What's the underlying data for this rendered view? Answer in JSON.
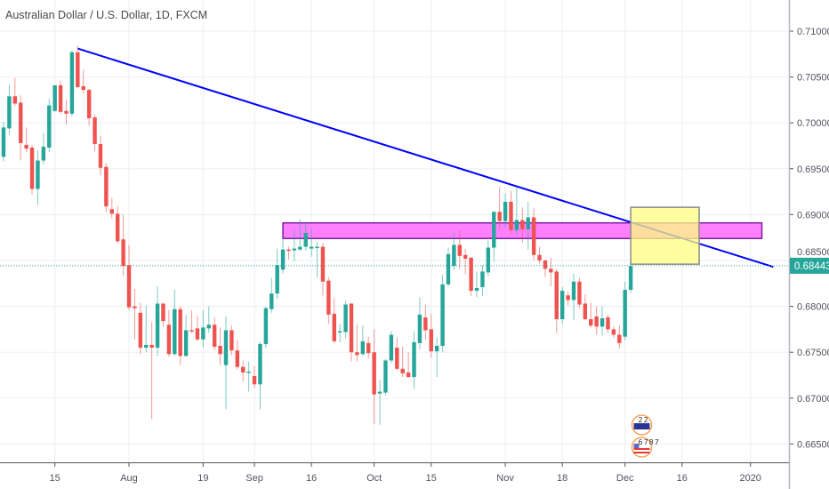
{
  "header": {
    "title": "Australian Dollar / U.S. Dollar, 1D, FXCM"
  },
  "colors": {
    "up": "#26a69a",
    "down": "#ef5350",
    "trendline": "#0000ff",
    "zone": "#ff80ff",
    "zone_border": "#7b1fa2",
    "box": "#ffff80",
    "box_border": "#8a8a8a",
    "grid": "#edf1f6",
    "last_price_bg": "#26a69a"
  },
  "chart_data": {
    "type": "candlestick",
    "title": "Australian Dollar / U.S. Dollar, 1D, FXCM",
    "ylim": [
      0.663,
      0.7135
    ],
    "y_ticks": [
      "0.71000",
      "0.70500",
      "0.70000",
      "0.69500",
      "0.69000",
      "0.68500",
      "0.68000",
      "0.67500",
      "0.67000",
      "0.66500"
    ],
    "y_tick_values": [
      0.71,
      0.705,
      0.7,
      0.695,
      0.69,
      0.685,
      0.68,
      0.675,
      0.67,
      0.665
    ],
    "x_ticks": [
      {
        "label": "15",
        "bar": 9
      },
      {
        "label": "Aug",
        "bar": 22
      },
      {
        "label": "19",
        "bar": 35
      },
      {
        "label": "Sep",
        "bar": 44
      },
      {
        "label": "16",
        "bar": 54
      },
      {
        "label": "Oct",
        "bar": 65
      },
      {
        "label": "15",
        "bar": 75
      },
      {
        "label": "Nov",
        "bar": 88
      },
      {
        "label": "18",
        "bar": 98
      },
      {
        "label": "Dec",
        "bar": 109
      },
      {
        "label": "16",
        "bar": 119
      },
      {
        "label": "2020",
        "bar": 131
      }
    ],
    "last_price": {
      "value": 0.68443,
      "label": "0.68443"
    },
    "ohlc": [
      [
        0.6963,
        0.7001,
        0.6958,
        0.6995
      ],
      [
        0.6994,
        0.7041,
        0.6987,
        0.7029
      ],
      [
        0.7029,
        0.7049,
        0.7018,
        0.7021
      ],
      [
        0.7022,
        0.703,
        0.6959,
        0.6978
      ],
      [
        0.6976,
        0.6995,
        0.6968,
        0.6972
      ],
      [
        0.6973,
        0.6976,
        0.6922,
        0.6928
      ],
      [
        0.6928,
        0.697,
        0.6911,
        0.6959
      ],
      [
        0.6959,
        0.6989,
        0.6955,
        0.6974
      ],
      [
        0.6973,
        0.7026,
        0.6968,
        0.7019
      ],
      [
        0.7013,
        0.7041,
        0.7012,
        0.7041
      ],
      [
        0.7041,
        0.7046,
        0.701,
        0.7012
      ],
      [
        0.7013,
        0.7025,
        0.6998,
        0.701
      ],
      [
        0.701,
        0.7079,
        0.7007,
        0.7077
      ],
      [
        0.7077,
        0.7084,
        0.7038,
        0.7039
      ],
      [
        0.704,
        0.7058,
        0.7032,
        0.7036
      ],
      [
        0.7036,
        0.7037,
        0.6997,
        0.7005
      ],
      [
        0.7006,
        0.7009,
        0.6969,
        0.6977
      ],
      [
        0.6977,
        0.6986,
        0.6943,
        0.6951
      ],
      [
        0.6952,
        0.6956,
        0.6903,
        0.6909
      ],
      [
        0.6906,
        0.6918,
        0.6896,
        0.6901
      ],
      [
        0.6901,
        0.6909,
        0.6869,
        0.6871
      ],
      [
        0.6873,
        0.69,
        0.6833,
        0.6844
      ],
      [
        0.6845,
        0.6867,
        0.6796,
        0.6799
      ],
      [
        0.68,
        0.6819,
        0.6764,
        0.6798
      ],
      [
        0.6793,
        0.6804,
        0.6748,
        0.6755
      ],
      [
        0.6755,
        0.6801,
        0.675,
        0.6758
      ],
      [
        0.6758,
        0.6783,
        0.6677,
        0.6755
      ],
      [
        0.6755,
        0.6822,
        0.6746,
        0.6803
      ],
      [
        0.6803,
        0.6804,
        0.6778,
        0.6784
      ],
      [
        0.678,
        0.6796,
        0.6745,
        0.6748
      ],
      [
        0.6748,
        0.6818,
        0.6746,
        0.6797
      ],
      [
        0.6797,
        0.68,
        0.6736,
        0.6746
      ],
      [
        0.6746,
        0.6791,
        0.6745,
        0.6774
      ],
      [
        0.6774,
        0.6796,
        0.6771,
        0.6773
      ],
      [
        0.6776,
        0.679,
        0.6762,
        0.6764
      ],
      [
        0.6764,
        0.6796,
        0.6755,
        0.6777
      ],
      [
        0.6776,
        0.68,
        0.6771,
        0.678
      ],
      [
        0.678,
        0.6788,
        0.6752,
        0.6756
      ],
      [
        0.6757,
        0.6777,
        0.6736,
        0.6748
      ],
      [
        0.6736,
        0.6789,
        0.6688,
        0.6774
      ],
      [
        0.6774,
        0.6779,
        0.6747,
        0.6752
      ],
      [
        0.6752,
        0.6763,
        0.6731,
        0.6734
      ],
      [
        0.6734,
        0.6741,
        0.6718,
        0.6728
      ],
      [
        0.6728,
        0.674,
        0.6707,
        0.6729
      ],
      [
        0.6724,
        0.6735,
        0.6711,
        0.6715
      ],
      [
        0.6715,
        0.6761,
        0.6688,
        0.6759
      ],
      [
        0.6759,
        0.68,
        0.6755,
        0.6798
      ],
      [
        0.6797,
        0.6831,
        0.6793,
        0.6814
      ],
      [
        0.6814,
        0.6863,
        0.6808,
        0.6845
      ],
      [
        0.684,
        0.6874,
        0.6836,
        0.6862
      ],
      [
        0.6862,
        0.6865,
        0.6851,
        0.6861
      ],
      [
        0.6861,
        0.6885,
        0.6849,
        0.6863
      ],
      [
        0.6862,
        0.6895,
        0.686,
        0.6865
      ],
      [
        0.6865,
        0.6891,
        0.6861,
        0.688
      ],
      [
        0.6863,
        0.6885,
        0.6854,
        0.6865
      ],
      [
        0.6864,
        0.687,
        0.6832,
        0.6865
      ],
      [
        0.6865,
        0.6869,
        0.6812,
        0.6827
      ],
      [
        0.6828,
        0.6832,
        0.6781,
        0.6791
      ],
      [
        0.6792,
        0.6809,
        0.676,
        0.6762
      ],
      [
        0.6772,
        0.6781,
        0.6761,
        0.6773
      ],
      [
        0.6772,
        0.6806,
        0.6765,
        0.6802
      ],
      [
        0.6803,
        0.6804,
        0.674,
        0.675
      ],
      [
        0.675,
        0.678,
        0.674,
        0.6747
      ],
      [
        0.6748,
        0.6779,
        0.6746,
        0.6762
      ],
      [
        0.676,
        0.6767,
        0.6743,
        0.6749
      ],
      [
        0.675,
        0.6775,
        0.6672,
        0.6704
      ],
      [
        0.6705,
        0.672,
        0.6671,
        0.6707
      ],
      [
        0.6706,
        0.6743,
        0.6703,
        0.6741
      ],
      [
        0.6741,
        0.6773,
        0.6738,
        0.6769
      ],
      [
        0.6755,
        0.6766,
        0.673,
        0.6732
      ],
      [
        0.6732,
        0.6756,
        0.6723,
        0.6727
      ],
      [
        0.6728,
        0.675,
        0.6722,
        0.6723
      ],
      [
        0.6723,
        0.6773,
        0.671,
        0.6761
      ],
      [
        0.676,
        0.681,
        0.6753,
        0.6791
      ],
      [
        0.6788,
        0.6802,
        0.6763,
        0.6774
      ],
      [
        0.6775,
        0.6792,
        0.6744,
        0.6751
      ],
      [
        0.6751,
        0.6766,
        0.6723,
        0.6757
      ],
      [
        0.6757,
        0.6834,
        0.675,
        0.6824
      ],
      [
        0.6824,
        0.6864,
        0.6822,
        0.6857
      ],
      [
        0.6844,
        0.688,
        0.684,
        0.6867
      ],
      [
        0.6867,
        0.6883,
        0.6841,
        0.6855
      ],
      [
        0.6856,
        0.6863,
        0.6835,
        0.6852
      ],
      [
        0.6853,
        0.6854,
        0.6811,
        0.6817
      ],
      [
        0.6817,
        0.6838,
        0.681,
        0.682
      ],
      [
        0.6821,
        0.6845,
        0.6811,
        0.6838
      ],
      [
        0.6837,
        0.6872,
        0.6833,
        0.6864
      ],
      [
        0.6864,
        0.6904,
        0.6849,
        0.6903
      ],
      [
        0.6903,
        0.693,
        0.6884,
        0.6893
      ],
      [
        0.6893,
        0.6923,
        0.6885,
        0.6914
      ],
      [
        0.6914,
        0.6926,
        0.6879,
        0.6883
      ],
      [
        0.6883,
        0.693,
        0.6878,
        0.6894
      ],
      [
        0.6894,
        0.6908,
        0.6869,
        0.6884
      ],
      [
        0.6884,
        0.6914,
        0.6862,
        0.6897
      ],
      [
        0.6897,
        0.6907,
        0.685,
        0.6856
      ],
      [
        0.6856,
        0.6865,
        0.6847,
        0.685
      ],
      [
        0.685,
        0.6851,
        0.6832,
        0.6841
      ],
      [
        0.6841,
        0.6853,
        0.6822,
        0.6837
      ],
      [
        0.6838,
        0.6841,
        0.6771,
        0.6786
      ],
      [
        0.6786,
        0.6821,
        0.6781,
        0.6817
      ],
      [
        0.6812,
        0.6816,
        0.6801,
        0.6807
      ],
      [
        0.6807,
        0.6836,
        0.6785,
        0.6827
      ],
      [
        0.6827,
        0.6831,
        0.6798,
        0.6802
      ],
      [
        0.6803,
        0.6813,
        0.6785,
        0.6786
      ],
      [
        0.6786,
        0.6804,
        0.6777,
        0.6779
      ],
      [
        0.6789,
        0.68,
        0.6769,
        0.6778
      ],
      [
        0.6778,
        0.68,
        0.6768,
        0.6787
      ],
      [
        0.6788,
        0.6791,
        0.6771,
        0.6775
      ],
      [
        0.6775,
        0.6778,
        0.6766,
        0.6769
      ],
      [
        0.6769,
        0.6779,
        0.6754,
        0.676
      ],
      [
        0.6767,
        0.6827,
        0.6763,
        0.6818
      ],
      [
        0.6818,
        0.6846,
        0.6815,
        0.6844
      ]
    ],
    "drawings": {
      "trendline": {
        "from": {
          "bar": 13,
          "price": 0.7081
        },
        "to": {
          "bar": 135,
          "price": 0.6843
        }
      },
      "resistance_zone": {
        "bar_start": 49,
        "bar_end": 133,
        "price_top": 0.6891,
        "price_bottom": 0.6874
      },
      "target_box": {
        "bar_start": 110,
        "bar_end": 122,
        "price_top": 0.6908,
        "price_bottom": 0.6846
      }
    },
    "events": [
      {
        "icon": "au-flag-event-icon",
        "label": "22",
        "bar": 111
      },
      {
        "icon": "us-flag-event-icon",
        "label": "6787",
        "bar": 111
      }
    ]
  }
}
